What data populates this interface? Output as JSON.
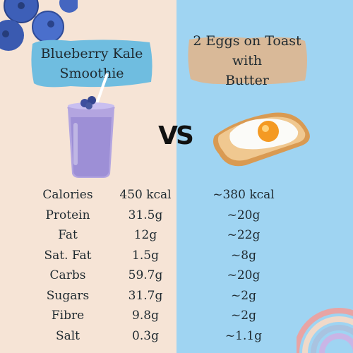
{
  "left": {
    "title": "Blueberry Kale\nSmoothie",
    "bg_color": "#f6e4d6",
    "banner_color": "#6fbde0",
    "image": "smoothie-glass-illustration"
  },
  "right": {
    "title": "2 Eggs on Toast with\nButter",
    "bg_color": "#9fd4f2",
    "banner_color": "#d9b998",
    "image": "egg-on-toast-illustration"
  },
  "vs_label": "VS",
  "nutrition": [
    {
      "label": "Calories",
      "left": "450 kcal",
      "right": "~380 kcal"
    },
    {
      "label": "Protein",
      "left": "31.5g",
      "right": "~20g"
    },
    {
      "label": "Fat",
      "left": "12g",
      "right": "~22g"
    },
    {
      "label": "Sat. Fat",
      "left": "1.5g",
      "right": "~8g"
    },
    {
      "label": "Carbs",
      "left": "59.7g",
      "right": "~20g"
    },
    {
      "label": "Sugars",
      "left": "31.7g",
      "right": "~2g"
    },
    {
      "label": "Fibre",
      "left": "9.8g",
      "right": "~2g"
    },
    {
      "label": "Salt",
      "left": "0.3g",
      "right": "~1.1g"
    }
  ],
  "decorations": [
    "blueberries-icon",
    "rainbow-arcs-icon"
  ]
}
